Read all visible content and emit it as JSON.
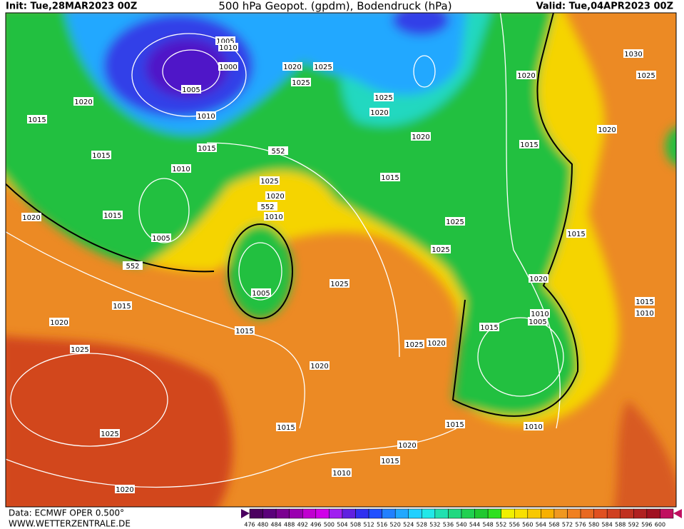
{
  "header": {
    "init": "Init: Tue,28MAR2023 00Z",
    "title": "500 hPa Geopot. (gpdm), Bodendruck (hPa)",
    "valid": "Valid: Tue,04APR2023 00Z"
  },
  "footer": {
    "source": "Data: ECMWF OPER 0.500°",
    "site": "WWW.WETTERZENTRALE.DE"
  },
  "isobar_labels": [
    1005,
    1010,
    1000,
    1005,
    1010,
    1020,
    1015,
    1015,
    1015,
    1010,
    552,
    1020,
    1025,
    1025,
    1025,
    1020,
    1020,
    1015,
    1025,
    1020,
    552,
    1010,
    1015,
    1020,
    1005,
    552,
    1005,
    1025,
    1015,
    1020,
    1015,
    1025,
    1020,
    1025,
    1020,
    1025,
    1025,
    1015,
    1020,
    1030,
    1025,
    1020,
    1015,
    1020,
    1010,
    1005,
    1015,
    1015,
    1010,
    1025,
    1015,
    1015,
    1010,
    1020,
    1015,
    1010,
    1020
  ],
  "colorbar": {
    "labels": [
      476,
      480,
      484,
      488,
      492,
      496,
      500,
      504,
      508,
      512,
      516,
      520,
      524,
      528,
      532,
      536,
      540,
      544,
      548,
      552,
      556,
      560,
      564,
      568,
      572,
      576,
      580,
      584,
      588,
      592,
      596,
      600
    ],
    "colors": [
      "#4b0060",
      "#5a007a",
      "#7a0090",
      "#9a00b0",
      "#c000d0",
      "#d000e8",
      "#a020f0",
      "#6020e0",
      "#3030f0",
      "#2050ff",
      "#2080ff",
      "#20a8ff",
      "#20d0ff",
      "#20e8e8",
      "#20e0b0",
      "#20d880",
      "#20d050",
      "#20c830",
      "#30e020",
      "#f0f000",
      "#f8e000",
      "#f8c800",
      "#f8b000",
      "#f09820",
      "#f08020",
      "#e86820",
      "#e05020",
      "#d04020",
      "#c03020",
      "#b02020",
      "#a01020",
      "#c01060"
    ]
  }
}
